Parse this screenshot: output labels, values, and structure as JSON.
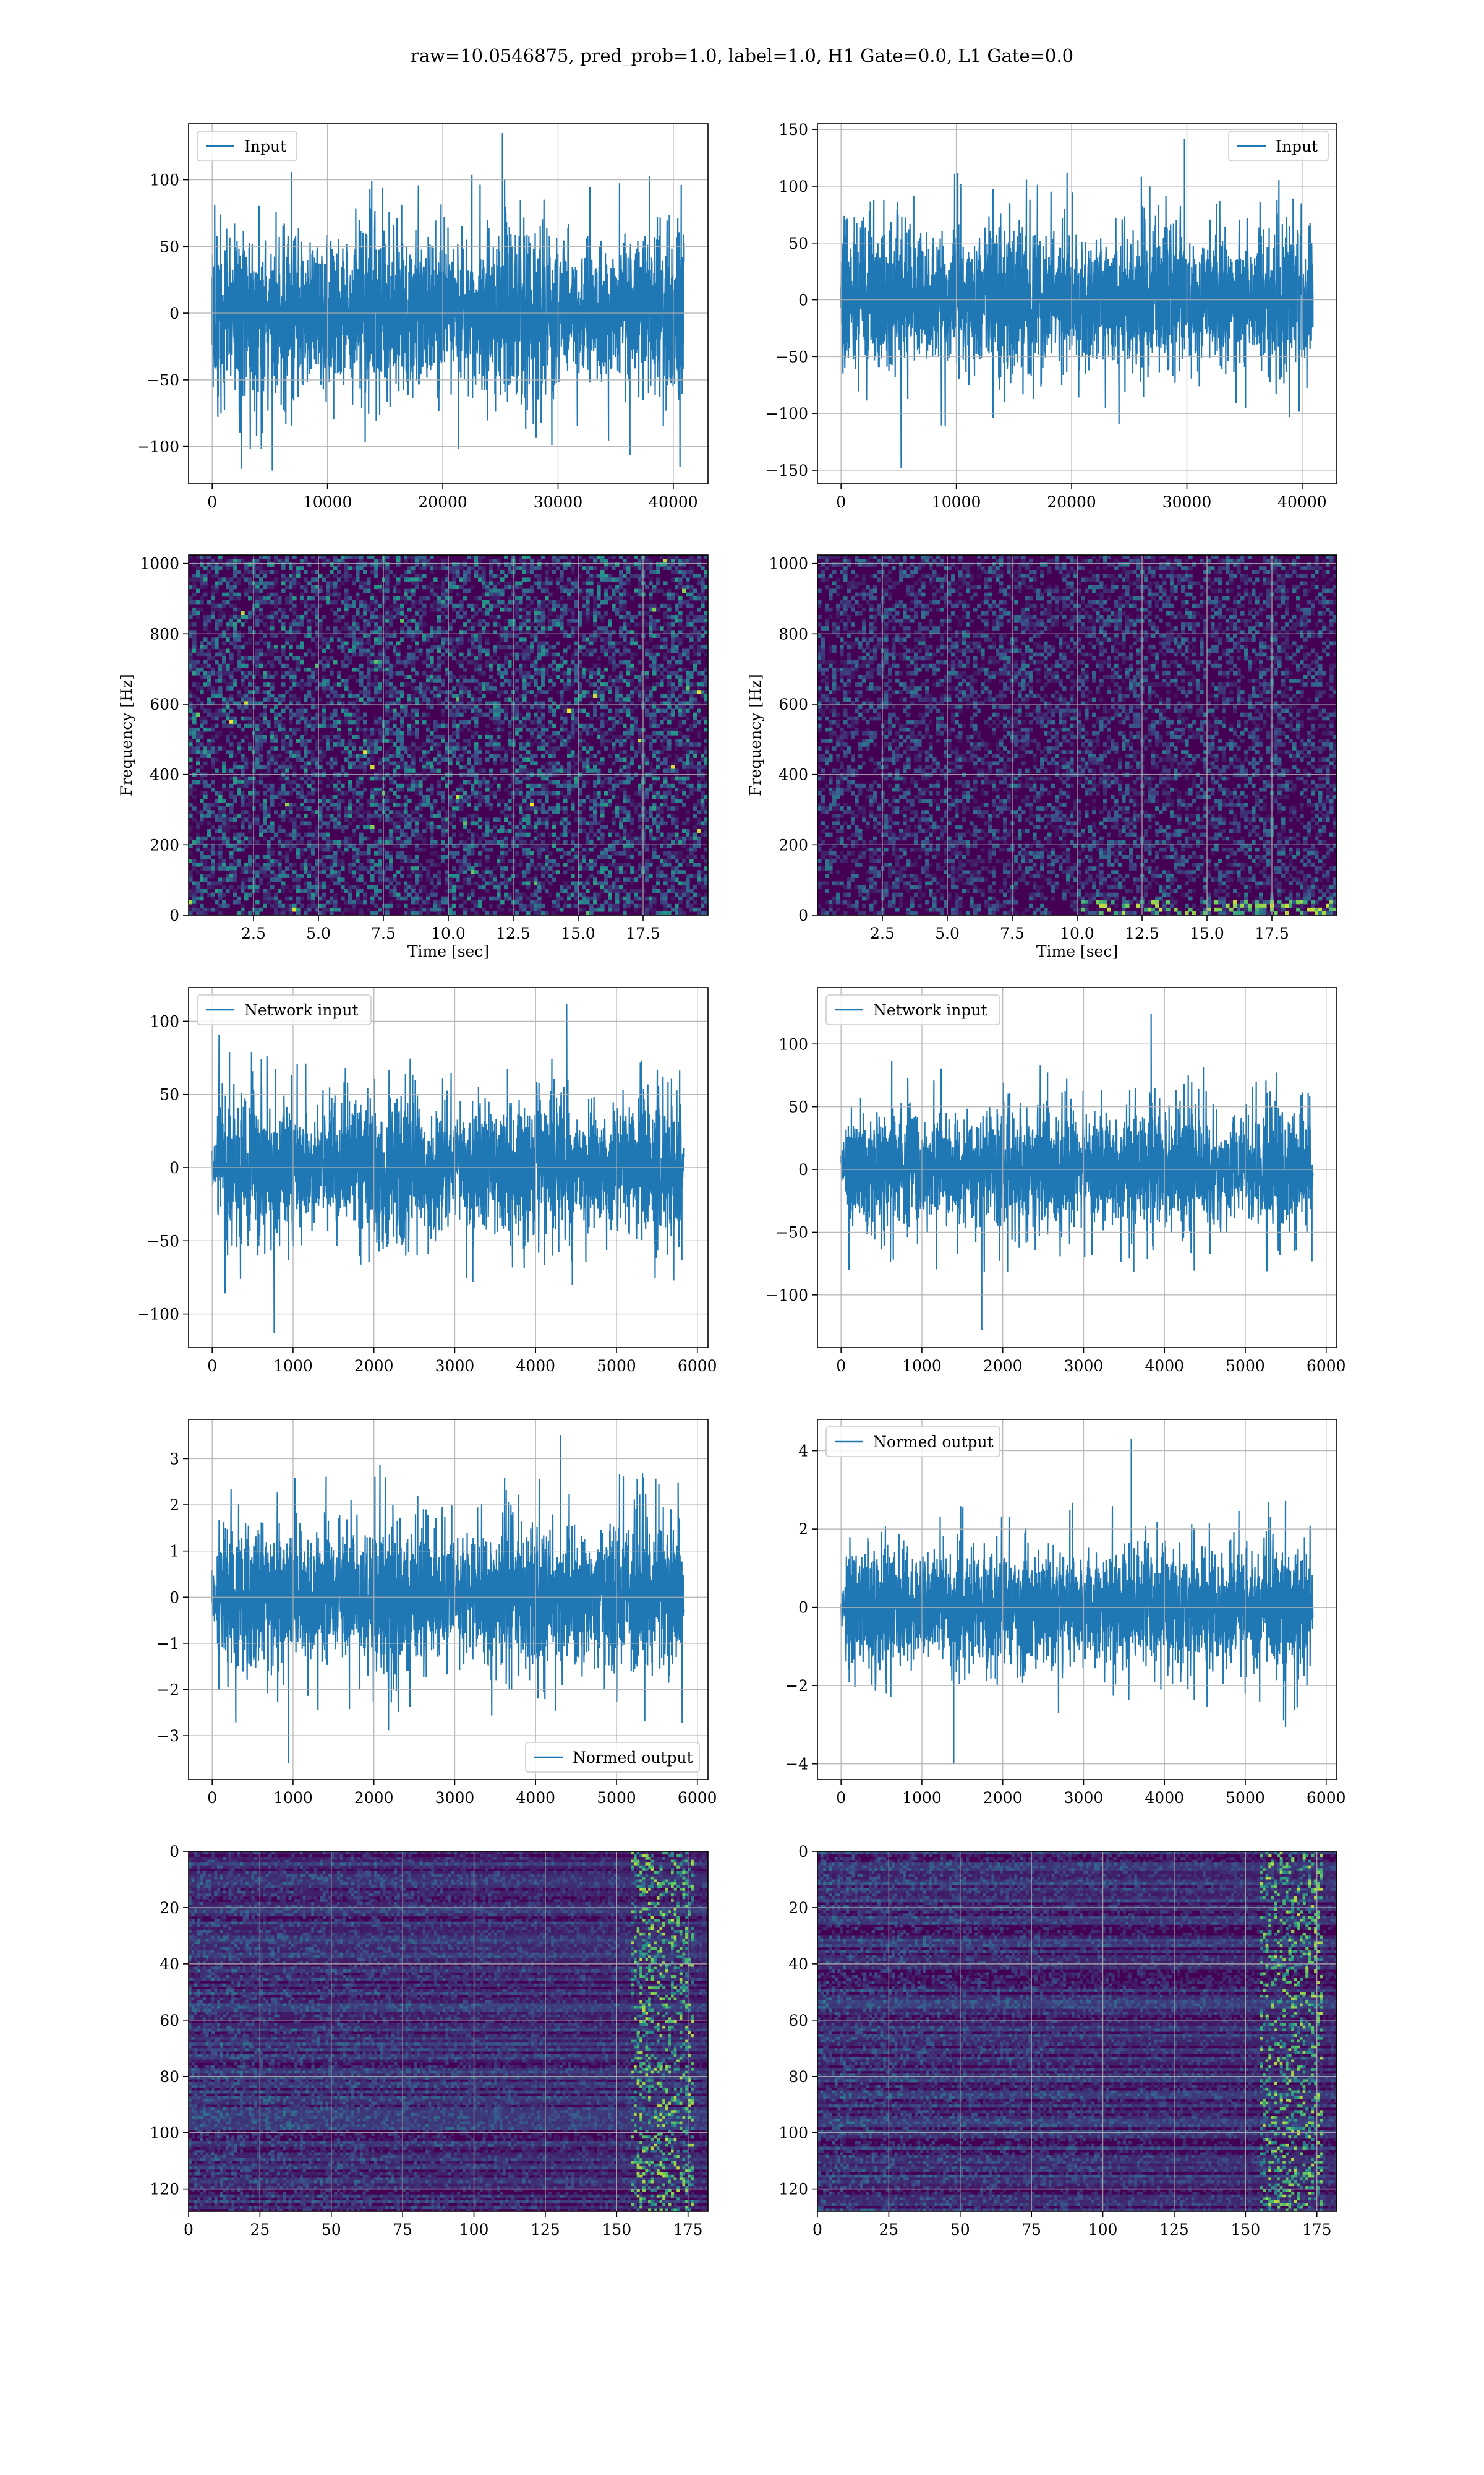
{
  "suptitle": "raw=10.0546875, pred_prob=1.0, label=1.0, H1 Gate=0.0, L1 Gate=0.0",
  "colors": {
    "line": "#1f77b4",
    "grid": "#b0b0b0",
    "viridis_low": "#440154"
  },
  "chart_data": [
    {
      "id": "input-h1",
      "type": "line",
      "row": 0,
      "col": 0,
      "series": [
        {
          "name": "Input",
          "n": 40960,
          "amplitude": 28,
          "min": -118,
          "max": 135
        }
      ],
      "xlim": [
        -2048,
        43008
      ],
      "ylim": [
        -128,
        142
      ],
      "xticks": [
        0,
        10000,
        20000,
        30000,
        40000
      ],
      "yticks": [
        -100,
        -50,
        0,
        50,
        100
      ],
      "legend": "upper left",
      "grid": true
    },
    {
      "id": "input-l1",
      "type": "line",
      "row": 0,
      "col": 1,
      "series": [
        {
          "name": "Input",
          "n": 40960,
          "amplitude": 30,
          "min": -148,
          "max": 142
        }
      ],
      "xlim": [
        -2048,
        43008
      ],
      "ylim": [
        -162,
        155
      ],
      "xticks": [
        0,
        10000,
        20000,
        30000,
        40000
      ],
      "yticks": [
        -150,
        -100,
        -50,
        0,
        50,
        100,
        150
      ],
      "legend": "upper right",
      "grid": true
    },
    {
      "id": "spectrogram-h1",
      "type": "heatmap",
      "row": 1,
      "col": 0,
      "xlabel": "Time [sec]",
      "ylabel": "Frequency [Hz]",
      "xlim": [
        0,
        20
      ],
      "ylim": [
        0,
        1024
      ],
      "xticks": [
        2.5,
        5.0,
        7.5,
        10.0,
        12.5,
        15.0,
        17.5
      ],
      "yticks": [
        0,
        200,
        400,
        600,
        800,
        1000
      ],
      "grid": true,
      "colormap": "viridis"
    },
    {
      "id": "spectrogram-l1",
      "type": "heatmap",
      "row": 1,
      "col": 1,
      "xlabel": "Time [sec]",
      "ylabel": "Frequency [Hz]",
      "xlim": [
        0,
        20
      ],
      "ylim": [
        0,
        1024
      ],
      "xticks": [
        2.5,
        5.0,
        7.5,
        10.0,
        12.5,
        15.0,
        17.5
      ],
      "yticks": [
        0,
        200,
        400,
        600,
        800,
        1000
      ],
      "grid": true,
      "colormap": "viridis"
    },
    {
      "id": "network-input-h1",
      "type": "line",
      "row": 2,
      "col": 0,
      "series": [
        {
          "name": "Network input",
          "n": 5840,
          "amplitude": 22,
          "min": -113,
          "max": 112
        }
      ],
      "xlim": [
        -292,
        6132
      ],
      "ylim": [
        -123,
        123
      ],
      "xticks": [
        0,
        1000,
        2000,
        3000,
        4000,
        5000,
        6000
      ],
      "yticks": [
        -100,
        -50,
        0,
        50,
        100
      ],
      "legend": "upper left",
      "grid": true
    },
    {
      "id": "network-input-l1",
      "type": "line",
      "row": 2,
      "col": 1,
      "series": [
        {
          "name": "Network input",
          "n": 5840,
          "amplitude": 22,
          "min": -128,
          "max": 124
        }
      ],
      "xlim": [
        -292,
        6132
      ],
      "ylim": [
        -142,
        145
      ],
      "xticks": [
        0,
        1000,
        2000,
        3000,
        4000,
        5000,
        6000
      ],
      "yticks": [
        -100,
        -50,
        0,
        50,
        100
      ],
      "legend": "upper left",
      "grid": true
    },
    {
      "id": "normed-output-h1",
      "type": "line",
      "row": 3,
      "col": 0,
      "series": [
        {
          "name": "Normed output",
          "n": 5840,
          "amplitude": 0.72,
          "min": -3.6,
          "max": 3.5
        }
      ],
      "xlim": [
        -292,
        6132
      ],
      "ylim": [
        -3.95,
        3.85
      ],
      "xticks": [
        0,
        1000,
        2000,
        3000,
        4000,
        5000,
        6000
      ],
      "yticks": [
        -3,
        -2,
        -1,
        0,
        1,
        2,
        3
      ],
      "legend": "lower right",
      "grid": true
    },
    {
      "id": "normed-output-l1",
      "type": "line",
      "row": 3,
      "col": 1,
      "series": [
        {
          "name": "Normed output",
          "n": 5840,
          "amplitude": 0.72,
          "min": -4.0,
          "max": 4.3
        }
      ],
      "xlim": [
        -292,
        6132
      ],
      "ylim": [
        -4.4,
        4.8
      ],
      "xticks": [
        0,
        1000,
        2000,
        3000,
        4000,
        5000,
        6000
      ],
      "yticks": [
        -4,
        -2,
        0,
        2,
        4
      ],
      "legend": "upper left",
      "grid": true
    },
    {
      "id": "feature-map-h1",
      "type": "heatmap",
      "row": 4,
      "col": 0,
      "xlim": [
        0,
        182
      ],
      "ylim": [
        128,
        0
      ],
      "xticks": [
        0,
        25,
        50,
        75,
        100,
        125,
        150,
        175
      ],
      "yticks": [
        0,
        20,
        40,
        60,
        80,
        100,
        120
      ],
      "grid": true,
      "colormap": "viridis"
    },
    {
      "id": "feature-map-l1",
      "type": "heatmap",
      "row": 4,
      "col": 1,
      "xlim": [
        0,
        182
      ],
      "ylim": [
        128,
        0
      ],
      "xticks": [
        0,
        25,
        50,
        75,
        100,
        125,
        150,
        175
      ],
      "yticks": [
        0,
        20,
        40,
        60,
        80,
        100,
        120
      ],
      "grid": true,
      "colormap": "viridis"
    }
  ]
}
